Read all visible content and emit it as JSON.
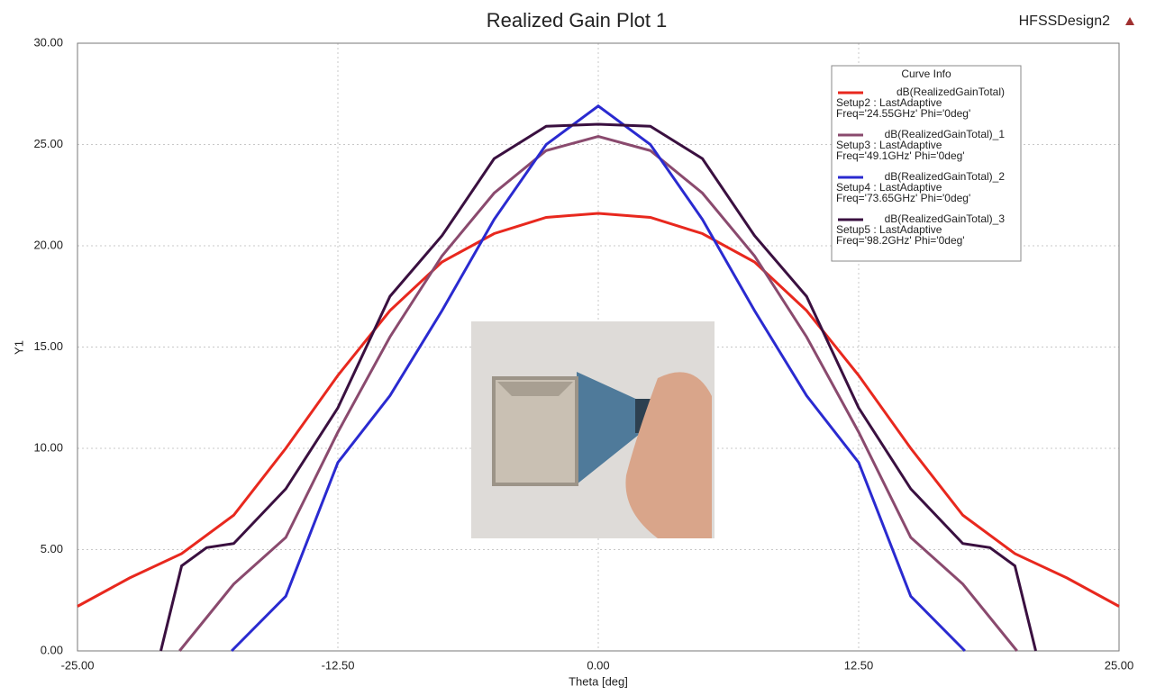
{
  "chart_data": {
    "type": "line",
    "title": "Realized Gain Plot 1",
    "design": "HFSSDesign2",
    "x_label": "Theta [deg]",
    "y_label": "Y1",
    "legend_title": "Curve Info",
    "xlim": [
      -25,
      25
    ],
    "ylim": [
      0,
      30
    ],
    "xticks": [
      {
        "value": -25,
        "label": "-25.00"
      },
      {
        "value": -12.5,
        "label": "-12.50"
      },
      {
        "value": 0,
        "label": "0.00"
      },
      {
        "value": 12.5,
        "label": "12.50"
      },
      {
        "value": 25,
        "label": "25.00"
      }
    ],
    "yticks": [
      {
        "value": 0,
        "label": "0.00"
      },
      {
        "value": 5,
        "label": "5.00"
      },
      {
        "value": 10,
        "label": "10.00"
      },
      {
        "value": 15,
        "label": "15.00"
      },
      {
        "value": 20,
        "label": "20.00"
      },
      {
        "value": 25,
        "label": "25.00"
      },
      {
        "value": 30,
        "label": "30.00"
      }
    ],
    "grid": true,
    "legend": "upper right",
    "series": [
      {
        "name": "dB(RealizedGainTotal)",
        "setup": "Setup2 : LastAdaptive",
        "params": "Freq='24.55GHz' Phi='0deg'",
        "color": "#e8281e",
        "x": [
          -25,
          -22.5,
          -20,
          -17.5,
          -15,
          -12.5,
          -10,
          -7.5,
          -5,
          -2.5,
          0,
          2.5,
          5,
          7.5,
          10,
          12.5,
          15,
          17.5,
          20,
          22.5,
          25
        ],
        "values": [
          2.2,
          3.6,
          4.8,
          6.7,
          10,
          13.6,
          16.8,
          19.2,
          20.6,
          21.4,
          21.6,
          21.4,
          20.6,
          19.2,
          16.8,
          13.6,
          10,
          6.7,
          4.8,
          3.6,
          2.2
        ]
      },
      {
        "name": "dB(RealizedGainTotal)_1",
        "setup": "Setup3 : LastAdaptive",
        "params": "Freq='49.1GHz' Phi='0deg'",
        "color": "#8a4a6e",
        "x": [
          -20.1,
          -17.5,
          -15,
          -12.5,
          -10,
          -7.5,
          -5,
          -2.5,
          0,
          2.5,
          5,
          7.5,
          10,
          12.5,
          15,
          17.5,
          20.1
        ],
        "values": [
          0,
          3.3,
          5.6,
          10.8,
          15.5,
          19.5,
          22.6,
          24.7,
          25.4,
          24.7,
          22.6,
          19.5,
          15.5,
          10.8,
          5.6,
          3.3,
          0
        ]
      },
      {
        "name": "dB(RealizedGainTotal)_2",
        "setup": "Setup4 : LastAdaptive",
        "params": "Freq='73.65GHz' Phi='0deg'",
        "color": "#2a2ad0",
        "x": [
          -17.6,
          -15,
          -12.5,
          -10,
          -7.5,
          -5,
          -2.5,
          0,
          2.5,
          5,
          7.5,
          10,
          12.5,
          15,
          17.6
        ],
        "values": [
          0,
          2.7,
          9.3,
          12.6,
          16.8,
          21.3,
          25,
          26.9,
          25,
          21.3,
          16.8,
          12.6,
          9.3,
          2.7,
          0
        ]
      },
      {
        "name": "dB(RealizedGainTotal)_3",
        "setup": "Setup5 : LastAdaptive",
        "params": "Freq='98.2GHz' Phi='0deg'",
        "color": "#3a1040",
        "x": [
          -21,
          -20,
          -18.8,
          -17.5,
          -15,
          -12.5,
          -10,
          -7.5,
          -5,
          -2.5,
          0,
          2.5,
          5,
          7.5,
          10,
          12.5,
          15,
          17.5,
          18.8,
          20,
          21
        ],
        "values": [
          0,
          4.2,
          5.1,
          5.3,
          8,
          12,
          17.5,
          20.5,
          24.3,
          25.9,
          26,
          25.9,
          24.3,
          20.5,
          17.5,
          12,
          8,
          5.3,
          5.1,
          4.2,
          0
        ]
      }
    ]
  }
}
